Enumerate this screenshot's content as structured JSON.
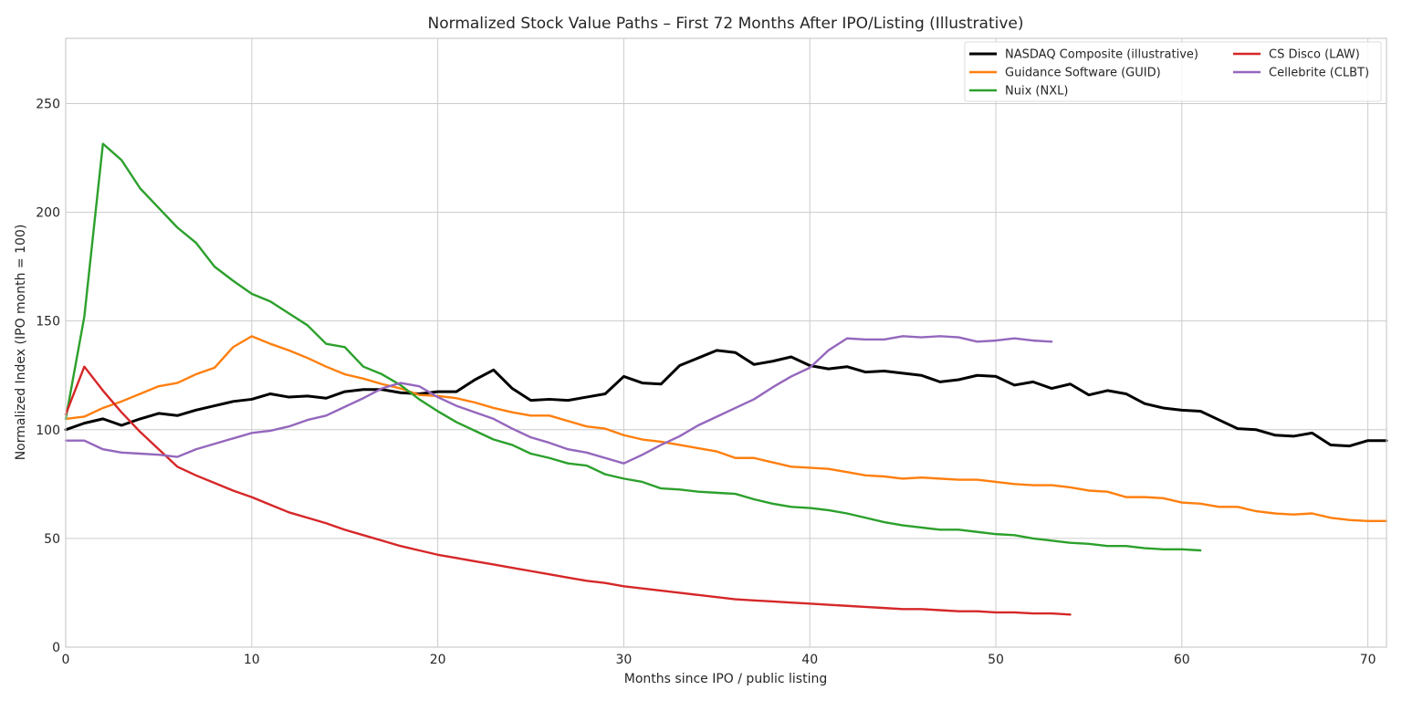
{
  "chart_data": {
    "type": "line",
    "title": "Normalized Stock Value Paths – First 72 Months After IPO/Listing (Illustrative)",
    "xlabel": "Months since IPO / public listing",
    "ylabel": "Normalized Index (IPO month = 100)",
    "xlim": [
      0,
      71
    ],
    "ylim": [
      0,
      280
    ],
    "xticks": [
      0,
      10,
      20,
      30,
      40,
      50,
      60,
      70
    ],
    "yticks": [
      0,
      50,
      100,
      150,
      200,
      250
    ],
    "grid": true,
    "legend_position": "top-right",
    "series": [
      {
        "name": "NASDAQ Composite (illustrative)",
        "color": "#000000",
        "values": [
          100,
          103,
          105,
          102,
          105,
          107.5,
          106.5,
          109,
          111,
          113,
          114,
          116.5,
          115,
          115.5,
          114.5,
          117.5,
          118.5,
          118.5,
          117,
          116.5,
          117.5,
          117.5,
          123,
          127.5,
          119,
          113.5,
          114,
          113.5,
          115,
          116.5,
          124.5,
          121.5,
          121,
          129.5,
          133,
          136.5,
          135.5,
          130,
          131.5,
          133.5,
          129.5,
          128,
          129,
          126.5,
          127,
          126,
          125,
          122,
          123,
          125,
          124.5,
          120.5,
          122,
          119,
          121,
          116,
          118,
          116.5,
          112,
          110,
          109,
          108.5,
          104.5,
          100.5,
          100,
          97.5,
          97,
          98.5,
          93,
          92.5,
          95,
          95
        ]
      },
      {
        "name": "Guidance Software (GUID)",
        "color": "#ff7f0e",
        "values": [
          105,
          106,
          110,
          113,
          116.5,
          120,
          121.5,
          125.5,
          128.5,
          138,
          143,
          139.5,
          136.5,
          133,
          129,
          125.5,
          123.5,
          121,
          119,
          116,
          115.5,
          114.5,
          112.5,
          110,
          108,
          106.5,
          106.5,
          104,
          101.5,
          100.5,
          97.5,
          95.5,
          94.5,
          93,
          91.5,
          90,
          87,
          87,
          85,
          83,
          82.5,
          82,
          80.5,
          79,
          78.5,
          77.5,
          78,
          77.5,
          77,
          77,
          76,
          75,
          74.5,
          74.5,
          73.5,
          72,
          71.5,
          69,
          69,
          68.5,
          66.5,
          66,
          64.5,
          64.5,
          62.5,
          61.5,
          61,
          61.5,
          59.5,
          58.5,
          58,
          58
        ]
      },
      {
        "name": "Nuix (NXL)",
        "color": "#2ca02c",
        "values": [
          105,
          152,
          231.5,
          224,
          211,
          202,
          193,
          186,
          175,
          168.5,
          162.5,
          159,
          153.5,
          148,
          139.5,
          138,
          129,
          125.5,
          120.5,
          114,
          108.5,
          103.5,
          99.5,
          95.5,
          93,
          89,
          87,
          84.5,
          83.5,
          79.5,
          77.5,
          76,
          73,
          72.5,
          71.5,
          71,
          70.5,
          68,
          66,
          64.5,
          64,
          63,
          61.5,
          59.5,
          57.5,
          56,
          55,
          54,
          54,
          53,
          52,
          51.5,
          50,
          49,
          48,
          47.5,
          46.5,
          46.5,
          45.5,
          45,
          45,
          44.5
        ]
      },
      {
        "name": "CS Disco (LAW)",
        "color": "#d62728",
        "values": [
          107,
          129,
          118,
          108,
          99,
          91,
          83,
          79,
          75.5,
          72,
          69,
          65.5,
          62,
          59.5,
          57,
          54,
          51.5,
          49,
          46.5,
          44.5,
          42.5,
          41,
          39.5,
          38,
          36.5,
          35,
          33.5,
          32,
          30.5,
          29.5,
          28,
          27,
          26,
          25,
          24,
          23,
          22,
          21.5,
          21,
          20.5,
          20,
          19.5,
          19,
          18.5,
          18,
          17.5,
          17.5,
          17,
          16.5,
          16.5,
          16,
          16,
          15.5,
          15.5,
          15
        ]
      },
      {
        "name": "Cellebrite (CLBT)",
        "color": "#9467bd",
        "values": [
          95,
          95,
          91,
          89.5,
          89,
          88.5,
          87.5,
          91,
          93.5,
          96,
          98.5,
          99.5,
          101.5,
          104.5,
          106.5,
          110.5,
          114.5,
          119,
          121.5,
          120,
          115,
          111,
          108,
          105,
          100.5,
          96.5,
          94,
          91,
          89.5,
          87,
          84.5,
          88.5,
          93,
          97,
          102,
          106,
          110,
          114,
          119.5,
          124.5,
          128.5,
          136.5,
          142,
          141.5,
          141.5,
          143,
          142.5,
          143,
          142.5,
          140.5,
          141,
          142,
          141,
          140.5
        ]
      }
    ]
  }
}
